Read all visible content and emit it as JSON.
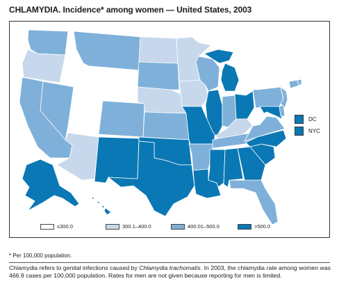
{
  "title": "CHLAMYDIA. Incidence* among women — United States, 2003",
  "colors": {
    "le300": "#ffffff",
    "c300_400": "#c7d8ec",
    "c400_500": "#7fb0d9",
    "gt500": "#0a78b4"
  },
  "legend": [
    {
      "label": "≤300.0",
      "class": "le300"
    },
    {
      "label": "300.1–400.0",
      "class": "c300_400"
    },
    {
      "label": "400.01–500.0",
      "class": "c400_500"
    },
    {
      "label": ">500.0",
      "class": "gt500"
    }
  ],
  "insets": [
    {
      "label": "DC",
      "class": "gt500"
    },
    {
      "label": "NYC",
      "class": "gt500"
    }
  ],
  "states": {
    "WA": "c400_500",
    "OR": "c300_400",
    "ID": "le300",
    "MT": "c400_500",
    "WY": "le300",
    "CA": "c400_500",
    "NV": "c400_500",
    "UT": "le300",
    "AZ": "c300_400",
    "CO": "c400_500",
    "NM": "gt500",
    "ND": "c300_400",
    "SD": "c400_500",
    "NE": "c300_400",
    "KS": "c400_500",
    "OK": "gt500",
    "TX": "gt500",
    "MN": "c300_400",
    "IA": "c300_400",
    "MO": "gt500",
    "AR": "c400_500",
    "LA": "gt500",
    "WI": "c400_500",
    "IL": "gt500",
    "MI": "gt500",
    "IN": "c400_500",
    "OH": "gt500",
    "KY": "c300_400",
    "TN": "c400_500",
    "MS": "gt500",
    "AL": "gt500",
    "GA": "gt500",
    "FL": "c400_500",
    "SC": "gt500",
    "NC": "gt500",
    "VA": "c400_500",
    "WV": "le300",
    "PA": "c400_500",
    "NY": "le300",
    "NJ": "c400_500",
    "DE": "c400_500",
    "MD": "gt500",
    "CT": "c400_500",
    "RI": "c400_500",
    "MA": "le300",
    "VT": "le300",
    "NH": "le300",
    "ME": "le300",
    "AK": "gt500",
    "HI": "gt500"
  },
  "footnote": "* Per 100,000 population.",
  "description": {
    "part1": "Chlamydia refers to genital infections caused by ",
    "organism": "Chlamydia trachomatis",
    "part2": ". In 2003, the chlamydia rate among women was 466.9 cases per 100,000 population. Rates for men are not given because reporting for men is limited."
  }
}
